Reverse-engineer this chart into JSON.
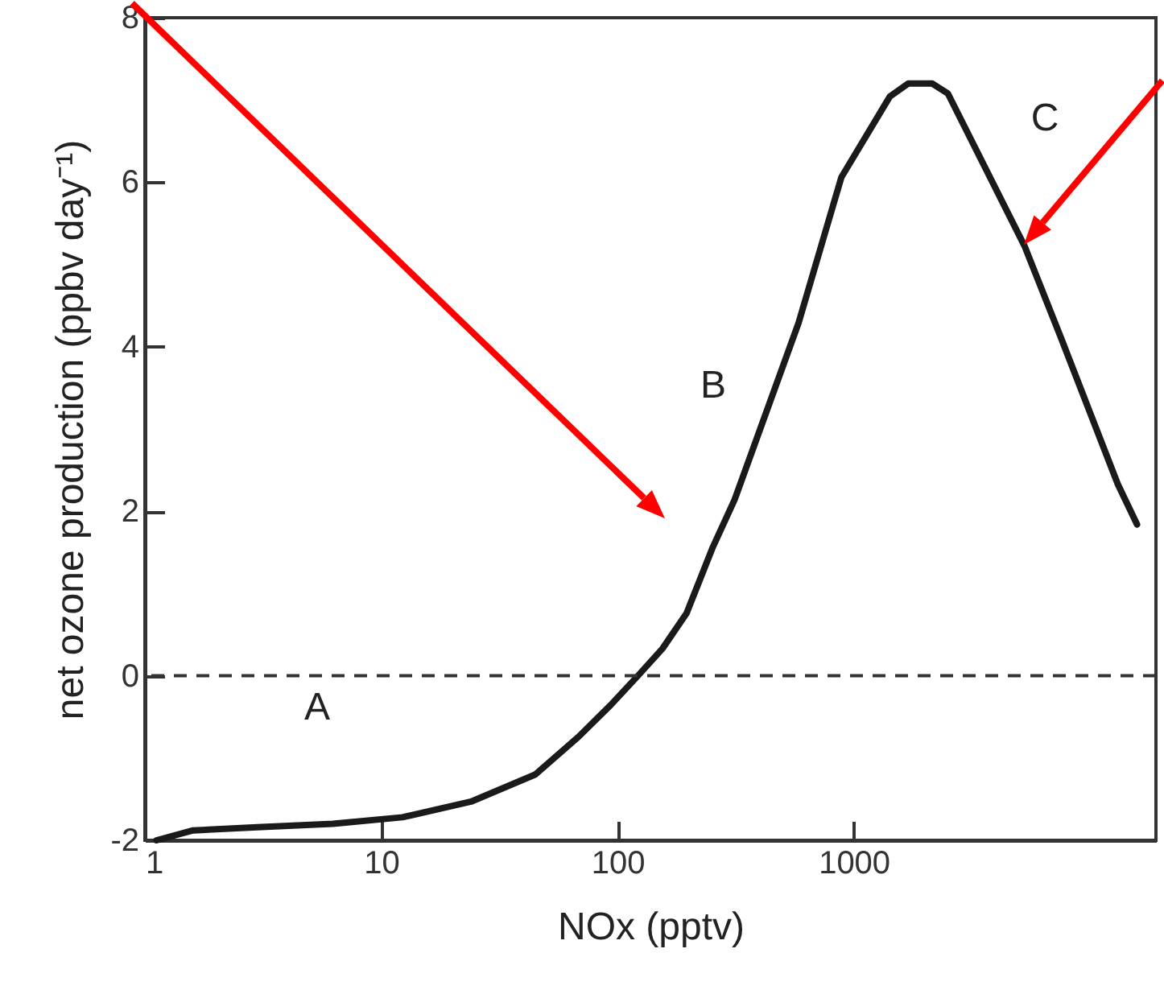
{
  "chart_data": {
    "type": "line",
    "xlabel": "NOx (pptv)",
    "ylabel": "net ozone production (ppbv day⁻¹)",
    "log": "x",
    "xlim": [
      1,
      19000
    ],
    "ylim": [
      -2,
      8
    ],
    "xticks": [
      1,
      10,
      100,
      1000
    ],
    "yticks": [
      -2,
      0,
      2,
      4,
      6,
      8
    ],
    "marker": "none",
    "line_style": "solid",
    "x": [
      1.12,
      1.6,
      2.99,
      6.25,
      12.3,
      24,
      44.9,
      68.5,
      94,
      122,
      155,
      196,
      252,
      313,
      584,
      886,
      1420,
      1700,
      2150,
      2500,
      5290,
      7550,
      13100,
      15800
    ],
    "series": [
      {
        "color": "#1a1a1a",
        "values": [
          -2,
          -1.88,
          -1.84,
          -1.8,
          -1.72,
          -1.53,
          -1.2,
          -0.74,
          -0.35,
          0,
          0.33,
          0.76,
          1.55,
          2.14,
          4.29,
          6.06,
          7.04,
          7.2,
          7.2,
          7.08,
          5.22,
          4.1,
          2.33,
          1.84
        ]
      }
    ],
    "ref_lines": [
      {
        "axis": "y",
        "value": 0,
        "color": "#333333",
        "line_style": "dashed"
      }
    ],
    "annotations": [
      "A",
      "B",
      "C"
    ]
  }
}
